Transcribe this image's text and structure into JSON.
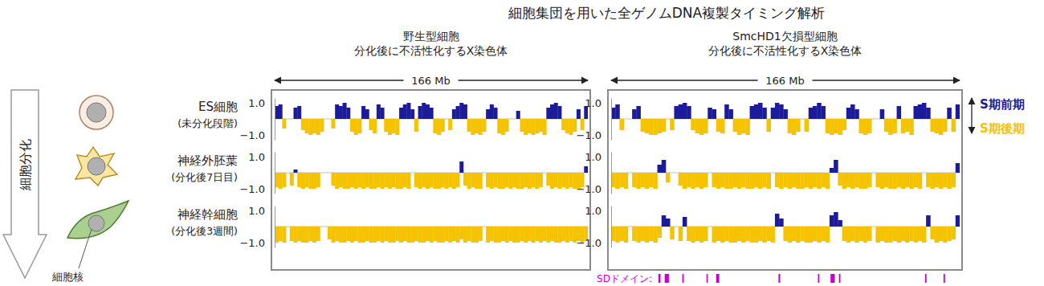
{
  "chart_data": {
    "type": "bar",
    "title": "細胞集団を用いた全ゲノムDNA複製タイミング解析",
    "xlim": [
      0,
      166
    ],
    "span_label": "166 Mb",
    "ylim": [
      -1.3,
      1.3
    ],
    "yticks": [
      {
        "value": 1,
        "label": "1.0"
      },
      {
        "value": -1,
        "label": "−1.0"
      }
    ],
    "x": [
      0,
      2,
      4,
      6,
      8,
      10,
      12,
      14,
      16,
      18,
      20,
      22,
      24,
      26,
      28,
      30,
      32,
      34,
      36,
      38,
      40,
      42,
      44,
      46,
      48,
      50,
      52,
      54,
      56,
      58,
      60,
      62,
      64,
      66,
      68,
      70,
      72,
      74,
      76,
      78,
      80,
      82,
      84,
      86,
      88,
      90,
      92,
      94,
      96,
      98,
      100,
      102,
      104,
      106,
      108,
      110,
      112,
      114,
      116,
      118,
      120,
      122,
      124,
      126,
      128,
      130,
      132,
      134,
      136,
      138,
      140,
      142,
      144,
      146,
      148,
      150,
      152,
      154,
      156,
      158,
      160,
      162,
      164
    ],
    "rows": [
      {
        "name": "ES細胞",
        "stage": "(未分化段階)"
      },
      {
        "name": "神経外胚葉",
        "stage": "(分化後7日目)"
      },
      {
        "name": "神経幹細胞",
        "stage": "(分化後3週間)"
      }
    ],
    "timing": [
      {
        "label": "S期前期",
        "color": "#1c1c9a"
      },
      {
        "label": "S期後期",
        "color": "#f5c300"
      }
    ],
    "panels": [
      {
        "title": [
          "野生型細胞",
          "分化後に不活性化するX染色体"
        ],
        "series": [
          {
            "values": [
              0.8,
              0.9,
              -0.6,
              null,
              null,
              0.7,
              0.8,
              -0.7,
              -0.9,
              -1.0,
              -0.9,
              -1.0,
              -0.8,
              null,
              null,
              -0.6,
              0.9,
              0.8,
              1.0,
              0.7,
              -0.8,
              -1.0,
              -0.9,
              0.8,
              0.6,
              -0.7,
              -0.9,
              0.9,
              0.7,
              -0.8,
              -1.0,
              -0.9,
              -1.0,
              0.7,
              0.9,
              1.0,
              0.6,
              -0.8,
              0.8,
              1.0,
              0.9,
              0.7,
              -0.9,
              -1.0,
              -0.8,
              null,
              -0.7,
              0.6,
              0.8,
              1.0,
              0.9,
              -0.8,
              -1.0,
              -0.9,
              -1.0,
              -0.8,
              0.6,
              0.9,
              0.7,
              -0.9,
              -1.0,
              -0.8,
              null,
              null,
              0.5,
              -0.8,
              -1.0,
              -0.9,
              -1.0,
              -0.9,
              -0.8,
              -1.0,
              0.7,
              0.9,
              1.0,
              0.8,
              -0.7,
              -0.9,
              -1.0,
              -0.8,
              0.6,
              -0.7,
              0.8
            ]
          },
          {
            "values": [
              -0.9,
              -1.0,
              -0.9,
              null,
              -0.8,
              0.2,
              -0.9,
              -1.0,
              -0.9,
              -1.0,
              -1.0,
              -0.9,
              null,
              null,
              null,
              -0.8,
              -1.0,
              -0.9,
              -1.0,
              -1.0,
              -0.9,
              -1.0,
              -0.9,
              -1.0,
              -0.9,
              -1.0,
              -1.0,
              -0.9,
              -1.0,
              -0.9,
              -1.0,
              -0.9,
              -1.0,
              -1.0,
              -0.9,
              -1.0,
              null,
              -0.9,
              -1.0,
              -0.9,
              -1.0,
              -0.9,
              -1.0,
              -1.0,
              -0.9,
              -1.0,
              -0.9,
              -1.0,
              -0.9,
              0.7,
              -0.8,
              -1.0,
              -0.9,
              -1.0,
              -1.0,
              null,
              -0.9,
              -1.0,
              -0.9,
              -1.0,
              -1.0,
              -0.9,
              -1.0,
              -0.9,
              -1.0,
              -1.0,
              -0.9,
              -1.0,
              -0.9,
              -1.0,
              -0.9,
              null,
              -0.8,
              -1.0,
              -0.9,
              -1.0,
              -0.9,
              -1.0,
              -0.9,
              -1.0,
              -1.0,
              -0.9,
              0.4
            ]
          },
          {
            "values": [
              -1.0,
              -0.9,
              -1.0,
              null,
              -0.9,
              -1.0,
              -0.9,
              -1.0,
              -1.0,
              -0.9,
              -1.0,
              -0.9,
              null,
              null,
              -0.8,
              -1.0,
              -0.9,
              -1.0,
              -1.0,
              -0.9,
              -1.0,
              -0.9,
              -1.0,
              -1.0,
              -0.9,
              -1.0,
              -1.0,
              -0.9,
              -1.0,
              -0.9,
              -1.0,
              -1.0,
              -0.9,
              -1.0,
              -0.9,
              -1.0,
              -1.0,
              -0.9,
              -1.0,
              -1.0,
              -0.9,
              -1.0,
              -0.9,
              -1.0,
              -1.0,
              -0.9,
              -1.0,
              -0.9,
              -1.0,
              -0.8,
              -1.0,
              -0.9,
              -1.0,
              -1.0,
              -0.9,
              null,
              -1.0,
              -0.9,
              -1.0,
              -1.0,
              -0.9,
              -1.0,
              -0.9,
              -1.0,
              -1.0,
              -0.9,
              -1.0,
              -0.9,
              -1.0,
              -0.9,
              -1.0,
              -0.9,
              -1.0,
              -0.9,
              -1.0,
              -1.0,
              -0.9,
              -1.0,
              -0.9,
              -1.0,
              -0.9,
              -1.0,
              -0.9
            ]
          }
        ]
      },
      {
        "title": [
          "SmcHD1欠損型細胞",
          "分化後に不活性化するX染色体"
        ],
        "series": [
          {
            "values": [
              0.7,
              0.9,
              -0.7,
              null,
              null,
              0.6,
              0.8,
              -0.8,
              -0.9,
              -1.0,
              -1.0,
              -0.9,
              -0.8,
              null,
              -0.7,
              0.8,
              0.9,
              1.0,
              0.8,
              -0.7,
              -0.9,
              -1.0,
              -0.9,
              0.7,
              0.6,
              -0.8,
              -0.9,
              0.9,
              0.6,
              -0.8,
              -1.0,
              -0.9,
              -1.0,
              0.8,
              0.9,
              1.0,
              0.7,
              -0.8,
              0.7,
              1.0,
              0.9,
              0.6,
              -0.9,
              -1.0,
              -0.8,
              null,
              -0.8,
              0.7,
              0.8,
              1.0,
              0.8,
              -0.9,
              -1.0,
              -0.9,
              -1.0,
              -0.7,
              0.7,
              0.9,
              0.6,
              -0.9,
              -1.0,
              -0.9,
              null,
              null,
              0.6,
              -0.8,
              -1.0,
              -0.9,
              0.8,
              -0.9,
              -0.8,
              -1.0,
              0.8,
              0.9,
              1.0,
              0.7,
              -0.8,
              -0.9,
              -1.0,
              -0.8,
              0.7,
              -0.8,
              0.9
            ]
          },
          {
            "values": [
              -0.9,
              -1.0,
              -0.9,
              -1.0,
              null,
              -0.9,
              -1.0,
              -0.9,
              -1.0,
              -0.9,
              -1.0,
              0.5,
              0.8,
              -0.6,
              null,
              null,
              -0.8,
              -1.0,
              -0.9,
              -1.0,
              -0.9,
              -1.0,
              -0.9,
              null,
              -0.9,
              -1.0,
              -0.9,
              -1.0,
              -1.0,
              -0.9,
              -1.0,
              -0.9,
              -1.0,
              -1.0,
              -0.9,
              -1.0,
              -0.9,
              -1.0,
              null,
              -0.9,
              -1.0,
              -0.9,
              -1.0,
              -0.9,
              -1.0,
              -1.0,
              -0.9,
              -1.0,
              -0.9,
              -1.0,
              -0.9,
              -1.0,
              0.3,
              0.8,
              -0.8,
              -1.0,
              -0.9,
              -1.0,
              -0.9,
              -1.0,
              -1.0,
              -0.9,
              null,
              -0.9,
              -1.0,
              -0.9,
              -1.0,
              -1.0,
              -0.9,
              -1.0,
              -0.9,
              -1.0,
              -0.9,
              -1.0,
              null,
              -0.9,
              -1.0,
              -0.9,
              -1.0,
              -0.9,
              -1.0,
              -0.9,
              0.6
            ]
          },
          {
            "values": [
              -0.9,
              -1.0,
              -0.9,
              -1.0,
              null,
              -0.9,
              -1.0,
              -0.9,
              -1.0,
              -0.9,
              -1.0,
              -0.7,
              0.7,
              0.5,
              -0.8,
              null,
              -0.9,
              0.6,
              -0.9,
              -1.0,
              -0.9,
              -1.0,
              -0.9,
              null,
              -1.0,
              -0.9,
              -1.0,
              -0.9,
              -1.0,
              -1.0,
              -0.9,
              -1.0,
              -0.9,
              -1.0,
              -1.0,
              -0.9,
              -1.0,
              -0.9,
              -1.0,
              0.8,
              0.5,
              -0.9,
              -1.0,
              -0.9,
              -1.0,
              -0.9,
              -1.0,
              -1.0,
              -0.9,
              -1.0,
              -0.9,
              -1.0,
              0.7,
              0.9,
              0.4,
              -0.9,
              -1.0,
              -0.9,
              -1.0,
              -0.9,
              -1.0,
              -0.9,
              null,
              -1.0,
              -0.9,
              -1.0,
              -1.0,
              -0.9,
              -1.0,
              -0.9,
              -1.0,
              -0.9,
              -1.0,
              -0.9,
              -1.0,
              0.7,
              -0.8,
              -1.0,
              -0.9,
              -1.0,
              -0.9,
              -0.8,
              0.7
            ]
          }
        ]
      }
    ],
    "sd_label": "SDドメイン:",
    "sd_color": "#cc00cc",
    "sd_domains": [
      [
        22.5,
        23.5
      ],
      [
        25.5,
        27.5
      ],
      [
        33.9,
        34.6
      ],
      [
        45.4,
        46.0
      ],
      [
        50.0,
        51.5
      ],
      [
        79.7,
        80.5
      ],
      [
        98.5,
        99.2
      ],
      [
        104.5,
        106.5
      ],
      [
        108.5,
        109.2
      ],
      [
        149.5,
        150.2
      ],
      [
        158.3,
        159.0
      ]
    ],
    "annotations": {
      "differentiation": "細胞分化",
      "nucleus": "細胞核"
    }
  }
}
